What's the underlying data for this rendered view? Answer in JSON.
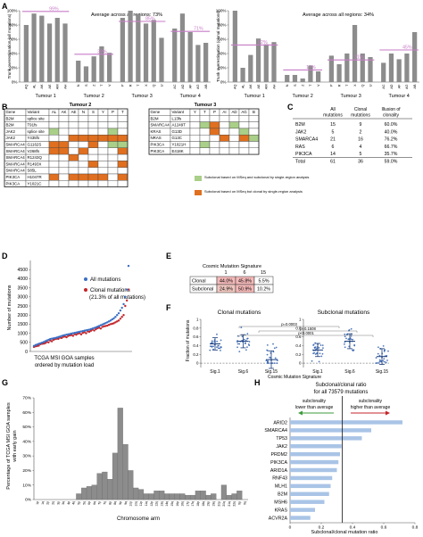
{
  "panels": {
    "A": "A",
    "B": "B",
    "C": "C",
    "D": "D",
    "E": "E",
    "F": "F",
    "G": "G",
    "H": "H"
  },
  "colors": {
    "bar": "#8c8c8c",
    "avg_line": "#c77cc7",
    "all_mut": "#3b6fc4",
    "clonal": "#c4252b",
    "subclonal_both": "#a9cf88",
    "subclonal_msseq": "#e06f1f",
    "h_bar": "#a9c4e6",
    "arrow_left": "#3c9b3c",
    "arrow_right": "#c4252b",
    "sig_red": "#f3b8b8",
    "sig_pink": "#f0c7c0"
  },
  "chart_data": [
    {
      "id": "A-left",
      "type": "bar",
      "ylabel": "Trunk overestimation (all mutations)",
      "ylim": [
        0,
        100
      ],
      "yticks": [
        "0%",
        "20%",
        "40%",
        "60%",
        "80%",
        "100%"
      ],
      "annotation": "Average across all regions: 73%",
      "categories": [
        "AQ",
        "AL",
        "AK",
        "AE",
        "AM",
        "AH",
        "N",
        "S",
        "Z",
        "T",
        "V",
        "P",
        "R",
        "T",
        "X",
        "Q",
        "U",
        "AC",
        "AD",
        "AF",
        "AG",
        "AB"
      ],
      "values": [
        80,
        96,
        93,
        82,
        90,
        82,
        30,
        22,
        36,
        50,
        41,
        90,
        100,
        95,
        82,
        87,
        62,
        75,
        96,
        70,
        52,
        55
      ],
      "groups": [
        {
          "label": "Tumour 1",
          "avg": 99,
          "avg_label": "99%"
        },
        {
          "label": "Tumour 2",
          "avg": 39,
          "avg_label": "39%"
        },
        {
          "label": "Tumour 3",
          "avg": 85,
          "avg_label": "85%"
        },
        {
          "label": "Tumour 4",
          "avg": 71,
          "avg_label": "71%"
        }
      ]
    },
    {
      "id": "A-right",
      "type": "bar",
      "ylabel": "Trunk overestimation (clonal mutations)",
      "ylim": [
        0,
        100
      ],
      "yticks": [
        "0%",
        "20%",
        "40%",
        "60%",
        "80%",
        "100%"
      ],
      "annotation": "Average across all regions: 34%",
      "categories": [
        "AQ",
        "AL",
        "AK",
        "AE",
        "AM",
        "AH",
        "N",
        "S",
        "Z",
        "T",
        "V",
        "P",
        "R",
        "T",
        "X",
        "Q",
        "U",
        "AC",
        "AD",
        "AF",
        "AG",
        "AB"
      ],
      "values": [
        100,
        20,
        38,
        61,
        53,
        56,
        10,
        10,
        5,
        23,
        15,
        37,
        25,
        40,
        80,
        40,
        35,
        27,
        40,
        32,
        40,
        70
      ],
      "groups": [
        {
          "label": "Tumour 1",
          "avg": 52,
          "avg_label": "52%"
        },
        {
          "label": "Tumour 2",
          "avg": 17,
          "avg_label": "17%"
        },
        {
          "label": "Tumour 3",
          "avg": 31,
          "avg_label": "31%"
        },
        {
          "label": "Tumour 4",
          "avg": 45,
          "avg_label": "45%"
        }
      ]
    },
    {
      "id": "D",
      "type": "scatter",
      "ylabel": "Number of mutations",
      "xlabel": "TCGA MSI GOA samples ordered by mutation load",
      "ylim": [
        0,
        5000
      ],
      "yticks": [
        "0",
        "500",
        "1000",
        "1500",
        "2000",
        "2500",
        "3000",
        "3500",
        "4000",
        "4500"
      ],
      "series": [
        {
          "name": "All mutations",
          "values": [
            300,
            350,
            380,
            420,
            450,
            480,
            520,
            560,
            600,
            640,
            680,
            700,
            720,
            740,
            760,
            790,
            820,
            850,
            880,
            900,
            920,
            940,
            960,
            980,
            1000,
            1020,
            1040,
            1060,
            1080,
            1100,
            1120,
            1140,
            1160,
            1180,
            1200,
            1230,
            1260,
            1290,
            1320,
            1360,
            1400,
            1440,
            1480,
            1520,
            1560,
            1600,
            1650,
            1700,
            1760,
            1820,
            1900,
            2000,
            2100,
            2250,
            2400,
            2600,
            3000,
            3400,
            4700
          ]
        },
        {
          "name": "Clonal mutations (21.3% of all mutations)",
          "values": [
            250,
            280,
            300,
            320,
            400,
            420,
            430,
            460,
            520,
            500,
            600,
            560,
            640,
            680,
            700,
            690,
            760,
            740,
            800,
            820,
            780,
            850,
            880,
            900,
            860,
            950,
            920,
            980,
            1000,
            940,
            1020,
            1060,
            1000,
            1100,
            1080,
            1140,
            1200,
            1150,
            1220,
            1280,
            1300,
            1260,
            1350,
            1380,
            1400,
            1420,
            1460,
            1500,
            1520,
            1550,
            1600,
            1650,
            1700,
            1800,
            1900,
            2000,
            2500,
            2800,
            3400
          ]
        }
      ]
    },
    {
      "id": "F",
      "type": "scatter",
      "ylabel": "Fraction of mutations",
      "xlabel": "Cosmic Mutation Signature",
      "yticks": [
        "0",
        "0.2",
        "0.4",
        "0.6",
        "0.8",
        "1"
      ],
      "ylim": [
        -0.1,
        1.0
      ],
      "groups": [
        {
          "title": "Clonal mutations",
          "categories": [
            "Sig.1",
            "Sig.6",
            "Sig.15"
          ],
          "means": [
            0.44,
            0.5,
            0.08
          ],
          "sds": [
            0.14,
            0.15,
            0.2
          ]
        },
        {
          "title": "Subclonal mutations",
          "categories": [
            "Sig.1",
            "Sig.6",
            "Sig.15"
          ],
          "means": [
            0.3,
            0.5,
            0.15
          ],
          "sds": [
            0.15,
            0.17,
            0.18
          ]
        }
      ],
      "pvalues": [
        "p=0.0003",
        "p=0.1508",
        "p<0.0001"
      ]
    },
    {
      "id": "G",
      "type": "bar",
      "ylabel": "Percentage of TCGA MSI GOA samples with early gain",
      "xlabel": "Chromosome arm",
      "ylim": [
        0,
        70
      ],
      "yticks": [
        "0%",
        "10%",
        "20%",
        "30%",
        "40%",
        "50%",
        "60%",
        "70%"
      ],
      "categories": [
        "1p",
        "1q",
        "2p",
        "2q",
        "3p",
        "3q",
        "4p",
        "4q",
        "5p",
        "5q",
        "6p",
        "6q",
        "7p",
        "7q",
        "8p",
        "8q",
        "9p",
        "9q",
        "10p",
        "10q",
        "11p",
        "11q",
        "12p",
        "12q",
        "13q",
        "14q",
        "15q",
        "16p",
        "16q",
        "17p",
        "17q",
        "18p",
        "18q",
        "19p",
        "19q",
        "20p",
        "20q",
        "21q",
        "22q",
        "Xp",
        "Xq"
      ],
      "values": [
        0,
        0,
        0,
        0,
        0,
        0,
        0,
        0,
        4,
        8,
        9,
        10,
        18,
        19,
        14,
        32,
        63,
        38,
        20,
        8,
        7,
        4,
        4,
        6,
        6,
        4,
        4,
        4,
        4,
        3,
        3,
        6,
        6,
        3,
        4,
        0,
        10,
        3,
        4,
        6,
        0
      ]
    },
    {
      "id": "H",
      "type": "bar",
      "title": "Subclonal/clonal ratio for all 73579 mutations",
      "xlabel": "Subclonal/clonal mutation ratio",
      "xlim": [
        0,
        0.8
      ],
      "xticks": [
        "0",
        "0.2",
        "0.4",
        "0.6",
        "0.8"
      ],
      "categories": [
        "ARID2",
        "SMARCA4",
        "TP53",
        "JAK2",
        "PRDM2",
        "PIK3CA",
        "ARID1A",
        "RNF43",
        "MLH1",
        "B2M",
        "MSH6",
        "KRAS",
        "ACVR2A"
      ],
      "values": [
        0.72,
        0.52,
        0.46,
        0.33,
        0.32,
        0.31,
        0.3,
        0.27,
        0.26,
        0.25,
        0.22,
        0.16,
        0.13
      ],
      "reference_line": 0.335
    }
  ],
  "panelA": {
    "left_ylabel": "Trunk overestimation (all mutations)",
    "right_ylabel": "Trunk overestimation (clonal mutations)",
    "left_avg": "Average across all regions: 73%",
    "right_avg": "Average across all regions: 34%"
  },
  "panelB": {
    "t2_title": "Tumour 2",
    "t3_title": "Tumour 3",
    "t2_headers": [
      "Gene",
      "Variant",
      "AL",
      "AK",
      "AE",
      "N",
      "S",
      "Y",
      "P",
      "T"
    ],
    "t2_rows": [
      {
        "gene": "B2M",
        "variant": "splice site",
        "cells": [
          "",
          "",
          "",
          "",
          "",
          "",
          "",
          ""
        ]
      },
      {
        "gene": "B2M",
        "variant": "T91fs",
        "cells": [
          "",
          "",
          "",
          "",
          "",
          "",
          "",
          ""
        ]
      },
      {
        "gene": "JAK2",
        "variant": "splice site",
        "cells": [
          "g",
          "",
          "",
          "",
          "",
          "",
          "g",
          ""
        ]
      },
      {
        "gene": "JAK2",
        "variant": "Y435fs",
        "cells": [
          "",
          "",
          "o",
          "o",
          "o",
          "o",
          "o",
          "o"
        ]
      },
      {
        "gene": "SMARCA4",
        "variant": "G1162S",
        "cells": [
          "o",
          "o",
          "",
          "",
          "o",
          "",
          "g",
          "g"
        ]
      },
      {
        "gene": "SMARCA4",
        "variant": "V268fs",
        "cells": [
          "o",
          "o",
          "",
          "o",
          "",
          "",
          "",
          "o"
        ]
      },
      {
        "gene": "SMARCA4",
        "variant": "R1243Q",
        "cells": [
          "",
          "",
          "o",
          "",
          "",
          "",
          "",
          ""
        ]
      },
      {
        "gene": "SMARCA4",
        "variant": "R1493X",
        "cells": [
          "",
          "",
          "",
          "",
          "o",
          "",
          "",
          "o"
        ]
      },
      {
        "gene": "SMARCA4",
        "variant": "S85L",
        "cells": [
          "",
          "",
          "",
          "",
          "",
          "",
          "",
          ""
        ]
      },
      {
        "gene": "PIK3CA",
        "variant": "H1047R",
        "cells": [
          "o",
          "",
          "o",
          "o",
          "o",
          "o",
          "",
          "o"
        ]
      },
      {
        "gene": "PIK3CA",
        "variant": "Y1021C",
        "cells": [
          "",
          "",
          "",
          "",
          "",
          "",
          "",
          ""
        ]
      }
    ],
    "t3_headers": [
      "Gene",
      "Variant",
      "Y",
      "T",
      "P",
      "AI",
      "AD",
      "AG",
      "B"
    ],
    "t3_rows": [
      {
        "gene": "B2M",
        "variant": "L13fs",
        "cells": [
          "",
          "",
          "",
          "",
          "",
          "",
          ""
        ]
      },
      {
        "gene": "SMARCA4",
        "variant": "A1249T",
        "cells": [
          "",
          "g",
          "o",
          "",
          "g",
          "",
          ""
        ]
      },
      {
        "gene": "KRAS",
        "variant": "G13D",
        "cells": [
          "",
          "",
          "o",
          "",
          "",
          "g",
          ""
        ]
      },
      {
        "gene": "NRAS",
        "variant": "G13C",
        "cells": [
          "",
          "",
          "",
          "o",
          "",
          "o",
          "g"
        ]
      },
      {
        "gene": "PIK3CA",
        "variant": "Y1021H",
        "cells": [
          "",
          "g",
          "",
          "",
          "",
          "",
          ""
        ]
      },
      {
        "gene": "PIK3CA",
        "variant": "E418K",
        "cells": [
          "",
          "",
          "",
          "",
          "",
          "",
          ""
        ]
      }
    ],
    "legend": [
      {
        "key": "g",
        "text": "Subclonal based on MSeq and subclonal by single-region analysis"
      },
      {
        "key": "o",
        "text": "Subclonal based on MSeq but clonal by single-region analysis"
      }
    ]
  },
  "panelC": {
    "headers": [
      "",
      "All mutations",
      "Clonal mutations",
      "Illusion of clonality"
    ],
    "rows": [
      [
        "B2M",
        "15",
        "9",
        "60.0%"
      ],
      [
        "JAK2",
        "5",
        "2",
        "40.0%"
      ],
      [
        "SMARCA4",
        "21",
        "16",
        "76.2%"
      ],
      [
        "RAS",
        "6",
        "4",
        "66.7%"
      ],
      [
        "PIK3CA",
        "14",
        "5",
        "35.7%"
      ],
      [
        "Total",
        "61",
        "36",
        "59.0%"
      ]
    ]
  },
  "panelD": {
    "ylabel": "Number of mutations",
    "legend_all": "All mutations",
    "legend_clonal": "Clonal mutations",
    "legend_clonal_sub": "(21.3% of all mutations)",
    "xlabel1": "TCGA MSI GOA samples",
    "xlabel2": "ordered by mutation load"
  },
  "panelE": {
    "title": "Cosmic  Mutation Signature",
    "cols": [
      "1",
      "6",
      "15"
    ],
    "rows": [
      {
        "label": "Clonal",
        "cells": [
          "44.0%",
          "45.8%",
          "5.5%"
        ]
      },
      {
        "label": "Subclonal",
        "cells": [
          "24.9%",
          "50.9%",
          "10.2%"
        ]
      }
    ]
  },
  "panelF": {
    "ylabel": "Fraction of mutations",
    "title_left": "Clonal mutations",
    "title_right": "Subclonal mutations",
    "xlabel": "Cosmic Mutation Signature",
    "p1": "p=0.0003",
    "p2": "p=0.1508",
    "p3": "p<0.0001"
  },
  "panelG": {
    "ylabel1": "Percentage of TCGA MSI GOA samples",
    "ylabel2": "with early gain",
    "xlabel": "Chromosome arm"
  },
  "panelH": {
    "title1": "Subclonal/clonal ratio",
    "title2": "for all 73579 mutations",
    "left_note1": "subclonality",
    "left_note2": "lower than average",
    "right_note1": "subclonality",
    "right_note2": "higher than average",
    "xlabel": "Subclonal/clonal mutation ratio"
  }
}
